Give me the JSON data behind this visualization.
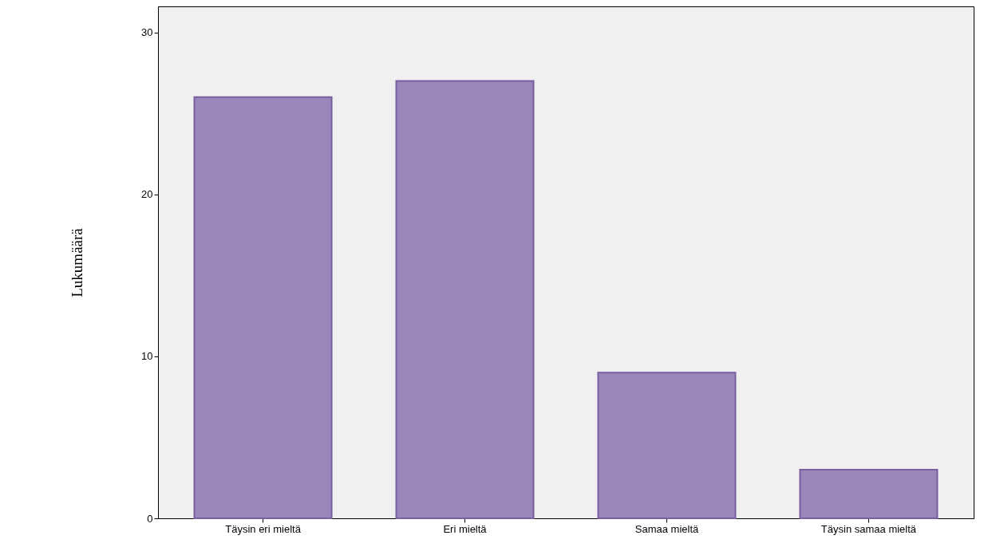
{
  "chart_data": {
    "type": "bar",
    "ylabel": "Lukumäärä",
    "categories": [
      "Täysin eri mieltä",
      "Eri mieltä",
      "Samaa mieltä",
      "Täysin samaa mieltä"
    ],
    "values": [
      26,
      27,
      9,
      3
    ],
    "color": "#9a86b8",
    "ylim": [
      0,
      31.6
    ],
    "yticks": [
      0,
      10,
      20,
      30
    ],
    "grid": false
  }
}
